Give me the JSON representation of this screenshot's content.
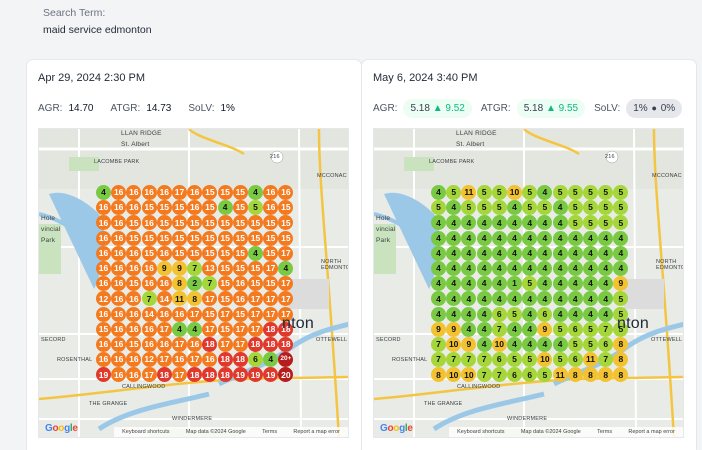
{
  "search": {
    "label": "Search Term:",
    "term": "maid service edmonton"
  },
  "colors": {
    "green": "#7ac943",
    "light_green": "#a5d63a",
    "yellow": "#f2c230",
    "orange": "#f47a20",
    "red": "#e0392b",
    "dark_red": "#b71c1c"
  },
  "cards": [
    {
      "date": "Apr 29, 2024 2:30 PM",
      "metrics": {
        "agr_label": "AGR:",
        "agr": "14.70",
        "atgr_label": "ATGR:",
        "atgr": "14.73",
        "solv_label": "SoLV:",
        "solv": "1%"
      },
      "map": {
        "labels": {
          "ridge": "LLAN RIDGE",
          "st_albert": "St. Albert",
          "lacombe": "LACOMBE PARK",
          "mcconachie": "MCCONAC",
          "hole1": "Hole",
          "hole2": "vincial",
          "hole3": "Park",
          "north_edm": "NORTH EDMONTON",
          "city": "nton",
          "secord": "SECORD",
          "ottewell": "OTTEWELL",
          "rosenthal": "ROSENTHAL",
          "callingwood": "CALLINGWOOD",
          "grange": "THE GRANGE",
          "windermere": "WINDERMERE",
          "road216": "216"
        },
        "footer": {
          "shortcuts": "Keyboard shortcuts",
          "mapdata": "Map data ©2024 Google",
          "terms": "Terms",
          "report": "Report a map error"
        },
        "google": "Google"
      },
      "grid": [
        [
          "4",
          "16",
          "16",
          "16",
          "16",
          "17",
          "16",
          "15",
          "15",
          "15",
          "4",
          "16",
          "16"
        ],
        [
          "16",
          "16",
          "16",
          "15",
          "15",
          "15",
          "16",
          "15",
          "4",
          "15",
          "5",
          "16",
          "15"
        ],
        [
          "16",
          "16",
          "15",
          "16",
          "15",
          "15",
          "15",
          "15",
          "15",
          "15",
          "15",
          "15",
          "15"
        ],
        [
          "16",
          "16",
          "15",
          "15",
          "15",
          "15",
          "15",
          "15",
          "15",
          "15",
          "15",
          "15",
          "15"
        ],
        [
          "16",
          "16",
          "16",
          "15",
          "16",
          "15",
          "15",
          "15",
          "15",
          "15",
          "4",
          "15",
          "17"
        ],
        [
          "16",
          "16",
          "16",
          "16",
          "9",
          "9",
          "7",
          "13",
          "15",
          "15",
          "15",
          "17",
          "4"
        ],
        [
          "16",
          "16",
          "15",
          "16",
          "16",
          "8",
          "2",
          "7",
          "15",
          "16",
          "15",
          "15",
          "17"
        ],
        [
          "12",
          "16",
          "16",
          "7",
          "14",
          "11",
          "8",
          "17",
          "15",
          "16",
          "17",
          "17",
          "17"
        ],
        [
          "16",
          "16",
          "16",
          "14",
          "16",
          "16",
          "17",
          "15",
          "17",
          "15",
          "17",
          "17",
          "17"
        ],
        [
          "15",
          "16",
          "16",
          "16",
          "17",
          "4",
          "4",
          "17",
          "15",
          "17",
          "17",
          "18",
          "18"
        ],
        [
          "16",
          "16",
          "15",
          "16",
          "16",
          "17",
          "16",
          "18",
          "17",
          "17",
          "18",
          "18",
          "18"
        ],
        [
          "16",
          "16",
          "16",
          "12",
          "17",
          "16",
          "17",
          "16",
          "18",
          "18",
          "6",
          "4",
          "20+"
        ],
        [
          "19",
          "16",
          "16",
          "17",
          "18",
          "17",
          "18",
          "18",
          "18",
          "19",
          "19",
          "19",
          "20"
        ]
      ]
    },
    {
      "date": "May 6, 2024 3:40 PM",
      "metrics": {
        "agr_label": "AGR:",
        "agr": "5.18",
        "agr_arrow": "▲",
        "agr_change": "9.52",
        "atgr_label": "ATGR:",
        "atgr": "5.18",
        "atgr_arrow": "▲",
        "atgr_change": "9.55",
        "solv_label": "SoLV:",
        "solv": "1%",
        "solv_dot": "●",
        "solv_change": "0%"
      },
      "map": {
        "labels": {
          "ridge": "LLAN RIDGE",
          "st_albert": "St. Albert",
          "lacombe": "LACOMBE PARK",
          "mcconachie": "MCCONAC",
          "hole1": "Hole",
          "hole2": "vincial",
          "hole3": "Park",
          "north_edm": "NORTH EDMONTON",
          "city": "nton",
          "secord": "SECORD",
          "ottewell": "OTTEWELL",
          "rosenthal": "ROSENTHAL",
          "callingwood": "CALLINGWOOD",
          "grange": "THE GRANGE",
          "windermere": "WINDERMERE",
          "road216": "216"
        },
        "footer": {
          "shortcuts": "Keyboard shortcuts",
          "mapdata": "Map data ©2024 Google",
          "terms": "Terms",
          "report": "Report a map error"
        },
        "google": "Google"
      },
      "grid": [
        [
          "4",
          "5",
          "11",
          "5",
          "5",
          "10",
          "5",
          "4",
          "5",
          "5",
          "5",
          "5",
          "5"
        ],
        [
          "5",
          "4",
          "5",
          "5",
          "5",
          "4",
          "5",
          "5",
          "4",
          "5",
          "5",
          "5",
          "5"
        ],
        [
          "4",
          "4",
          "4",
          "4",
          "4",
          "4",
          "4",
          "4",
          "4",
          "5",
          "5",
          "5",
          "5"
        ],
        [
          "4",
          "4",
          "4",
          "4",
          "4",
          "4",
          "4",
          "4",
          "4",
          "4",
          "4",
          "4",
          "4"
        ],
        [
          "4",
          "4",
          "4",
          "4",
          "4",
          "4",
          "4",
          "4",
          "4",
          "4",
          "4",
          "4",
          "4"
        ],
        [
          "4",
          "4",
          "4",
          "4",
          "4",
          "4",
          "4",
          "4",
          "4",
          "4",
          "4",
          "4",
          "4"
        ],
        [
          "4",
          "4",
          "4",
          "4",
          "4",
          "1",
          "5",
          "4",
          "4",
          "4",
          "4",
          "4",
          "9"
        ],
        [
          "4",
          "4",
          "4",
          "4",
          "4",
          "4",
          "4",
          "4",
          "4",
          "4",
          "4",
          "4",
          "5"
        ],
        [
          "4",
          "4",
          "4",
          "4",
          "6",
          "5",
          "4",
          "6",
          "4",
          "4",
          "4",
          "4",
          "5"
        ],
        [
          "9",
          "9",
          "4",
          "4",
          "7",
          "4",
          "4",
          "9",
          "5",
          "6",
          "5",
          "7",
          "5"
        ],
        [
          "7",
          "10",
          "9",
          "4",
          "10",
          "4",
          "4",
          "4",
          "4",
          "5",
          "5",
          "6",
          "8"
        ],
        [
          "7",
          "7",
          "7",
          "7",
          "6",
          "5",
          "5",
          "10",
          "5",
          "6",
          "11",
          "7",
          "8"
        ],
        [
          "8",
          "10",
          "10",
          "7",
          "7",
          "6",
          "6",
          "5",
          "11",
          "8",
          "8",
          "8",
          "8"
        ]
      ]
    }
  ]
}
